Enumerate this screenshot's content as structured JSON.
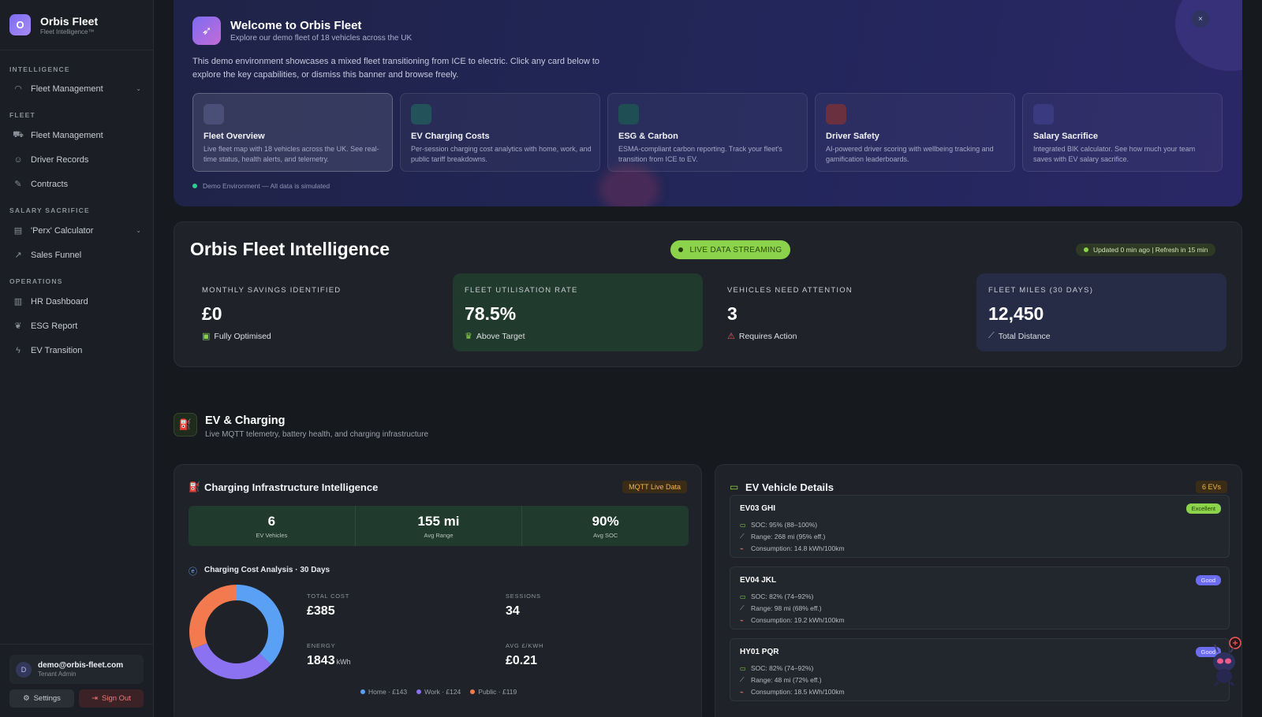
{
  "brand": {
    "logo_letter": "O",
    "name": "Orbis Fleet",
    "tagline": "Fleet Intelligence™"
  },
  "sidebar": {
    "sections": [
      {
        "title": "INTELLIGENCE"
      },
      {
        "title": "FLEET"
      },
      {
        "title": "SALARY SACRIFICE"
      },
      {
        "title": "OPERATIONS"
      }
    ],
    "items": [
      {
        "label": "Fleet Management",
        "icon": "gauge-icon"
      },
      {
        "label": "Fleet Management",
        "icon": "car-icon"
      },
      {
        "label": "Driver Records",
        "icon": "users-icon"
      },
      {
        "label": "Contracts",
        "icon": "document-edit-icon"
      },
      {
        "label": "'Perx' Calculator",
        "icon": "calculator-icon"
      },
      {
        "label": "Sales Funnel",
        "icon": "trend-icon"
      },
      {
        "label": "HR Dashboard",
        "icon": "bar-chart-icon"
      },
      {
        "label": "ESG Report",
        "icon": "leaf-icon"
      },
      {
        "label": "EV Transition",
        "icon": "bolt-icon"
      }
    ],
    "user": {
      "initial": "D",
      "email": "demo@orbis-fleet.com",
      "role": "Tenant Admin"
    },
    "settings_label": "Settings",
    "signout_label": "Sign Out"
  },
  "welcome": {
    "title": "Welcome to Orbis Fleet",
    "subtitle": "Explore our demo fleet of 18 vehicles across the UK",
    "description": "This demo environment showcases a mixed fleet transitioning from ICE to electric. Click any card below to explore the key capabilities, or dismiss this banner and browse freely.",
    "close_glyph": "×",
    "cards": [
      {
        "title": "Fleet Overview",
        "desc": "Live fleet map with 18 vehicles across the UK. See real-time status, health alerts, and telemetry.",
        "color": "#3a3f66"
      },
      {
        "title": "EV Charging Costs",
        "desc": "Per-session charging cost analytics with home, work, and public tariff breakdowns.",
        "color": "#24525a"
      },
      {
        "title": "ESG & Carbon",
        "desc": "ESMA-compliant carbon reporting. Track your fleet's transition from ICE to EV.",
        "color": "#1f4f55"
      },
      {
        "title": "Driver Safety",
        "desc": "AI-powered driver scoring with wellbeing tracking and gamification leaderboards.",
        "color": "#6a3040"
      },
      {
        "title": "Salary Sacrifice",
        "desc": "Integrated BIK calculator. See how much your team saves with EV salary sacrifice.",
        "color": "#3a3a80"
      }
    ],
    "demo_note": "Demo Environment — All data is simulated"
  },
  "intel": {
    "title": "Orbis Fleet Intelligence",
    "live_label": "LIVE DATA STREAMING",
    "updated_label": "Updated 0 min ago | Refresh in 15 min",
    "kpis": [
      {
        "label": "MONTHLY SAVINGS IDENTIFIED",
        "value": "£0",
        "note": "Fully Optimised",
        "icon": "wallet-icon"
      },
      {
        "label": "FLEET UTILISATION RATE",
        "value": "78.5%",
        "note": "Above Target",
        "icon": "trophy-icon"
      },
      {
        "label": "VEHICLES NEED ATTENTION",
        "value": "3",
        "note": "Requires Action",
        "icon": "warning-icon"
      },
      {
        "label": "FLEET MILES (30 DAYS)",
        "value": "12,450",
        "note": "Total Distance",
        "icon": "ruler-icon"
      }
    ]
  },
  "ev_section": {
    "title": "EV & Charging",
    "subtitle": "Live MQTT telemetry, battery health, and charging infrastructure"
  },
  "charging": {
    "title": "Charging Infrastructure Intelligence",
    "badge": "MQTT Live Data",
    "stats": [
      {
        "value": "6",
        "label": "EV Vehicles"
      },
      {
        "value": "155 mi",
        "label": "Avg Range"
      },
      {
        "value": "90%",
        "label": "Avg SOC"
      }
    ],
    "analysis_title": "Charging Cost Analysis · 30 Days",
    "boxes": [
      {
        "label": "TOTAL COST",
        "value": "£385",
        "unit": "",
        "bg": "#1f2d3a"
      },
      {
        "label": "SESSIONS",
        "value": "34",
        "unit": "",
        "bg": "#252838"
      },
      {
        "label": "ENERGY",
        "value": "1843",
        "unit": "kWh",
        "bg": "#23302a"
      },
      {
        "label": "AVG £/KWH",
        "value": "£0.21",
        "unit": "",
        "bg": "#332726"
      }
    ],
    "legend": [
      {
        "label": "Home · £143",
        "color": "#5aa0f5"
      },
      {
        "label": "Work · £124",
        "color": "#8a72f0"
      },
      {
        "label": "Public · £119",
        "color": "#f27a4e"
      }
    ]
  },
  "chart_data": {
    "type": "pie",
    "title": "",
    "categories": [
      "Home",
      "Work",
      "Public"
    ],
    "values": [
      143,
      124,
      119
    ],
    "colors": [
      "#5aa0f5",
      "#8a72f0",
      "#f27a4e"
    ],
    "donut": true
  },
  "ev_details": {
    "title": "EV Vehicle Details",
    "badge": "6 EVs",
    "vehicles": [
      {
        "name": "EV03 GHI",
        "badge": "Excellent",
        "soc": "SOC: 95% (88–100%)",
        "range": "Range: 268 mi (95% eff.)",
        "consumption": "Consumption: 14.8 kWh/100km"
      },
      {
        "name": "EV04 JKL",
        "badge": "Good",
        "soc": "SOC: 82% (74–92%)",
        "range": "Range: 98 mi (68% eff.)",
        "consumption": "Consumption: 19.2 kWh/100km"
      },
      {
        "name": "HY01 PQR",
        "badge": "Good",
        "soc": "SOC: 82% (74–92%)",
        "range": "Range: 48 mi (72% eff.)",
        "consumption": "Consumption: 18.5 kWh/100km"
      }
    ]
  }
}
